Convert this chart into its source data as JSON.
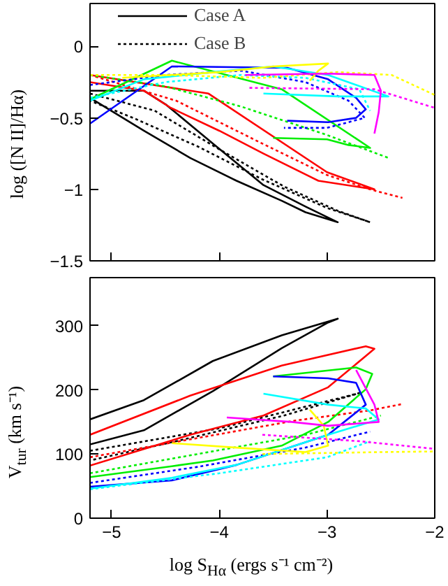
{
  "chart_data": [
    {
      "type": "line",
      "ylabel": "log ([N II]/Hα)",
      "xlim": [
        -5.2,
        -2
      ],
      "xticks": [
        -5,
        -4,
        -3,
        -2
      ],
      "ylim": [
        -1.5,
        0.3
      ],
      "yticks": [
        -1.5,
        -1,
        -0.5,
        0
      ],
      "tick_labels": "y",
      "legend": "top left",
      "series": [
        {
          "name": "Case A",
          "color": "#000000",
          "line_style": "solid",
          "x": [
            -5.2,
            -4.7,
            -4.49,
            -4.06,
            -3.59,
            -3.2,
            -2.9,
            -3.2,
            -3.42,
            -3.84,
            -4.27,
            -4.7,
            -5.2
          ],
          "values": [
            -0.31,
            -0.31,
            -0.41,
            -0.68,
            -0.97,
            -1.12,
            -1.23,
            -1.16,
            -1.08,
            -0.94,
            -0.78,
            -0.59,
            -0.36
          ]
        },
        {
          "name": "Case B",
          "color": "#000000",
          "line_style": "dotted",
          "x": [
            -5.2,
            -4.6,
            -4.0,
            -3.4,
            -2.9,
            -2.6,
            -3.0,
            -3.6,
            -4.2,
            -4.8,
            -5.2
          ],
          "values": [
            -0.33,
            -0.45,
            -0.72,
            -0.98,
            -1.15,
            -1.23,
            -1.13,
            -0.93,
            -0.7,
            -0.5,
            -0.38
          ]
        },
        {
          "color": "#ff0000",
          "line_style": "solid",
          "x": [
            -5.2,
            -4.1,
            -3.0,
            -2.56,
            -3.08,
            -3.59,
            -4.0,
            -4.45,
            -4.7,
            -5.2
          ],
          "values": [
            -0.2,
            -0.33,
            -0.88,
            -1.0,
            -0.94,
            -0.75,
            -0.59,
            -0.43,
            -0.31,
            -0.25
          ]
        },
        {
          "color": "#ff0000",
          "line_style": "dotted",
          "x": [
            -5.2,
            -4.4,
            -3.6,
            -3.0,
            -2.6,
            -2.3
          ],
          "values": [
            -0.2,
            -0.38,
            -0.68,
            -0.9,
            -1.0,
            -1.06
          ]
        },
        {
          "color": "#00ee00",
          "line_style": "solid",
          "x": [
            -5.2,
            -4.44,
            -3.42,
            -2.6,
            -2.8,
            -3.0,
            -3.5
          ],
          "values": [
            -0.37,
            -0.1,
            -0.3,
            -0.71,
            -0.69,
            -0.65,
            -0.64
          ]
        },
        {
          "color": "#00ee00",
          "line_style": "dotted",
          "x": [
            -5.2,
            -4.5,
            -3.8,
            -3.0,
            -2.43
          ],
          "values": [
            -0.2,
            -0.28,
            -0.42,
            -0.62,
            -0.78
          ]
        },
        {
          "color": "#0000ff",
          "line_style": "solid",
          "x": [
            -5.2,
            -4.44,
            -3.37,
            -2.99,
            -2.73,
            -2.64,
            -2.73,
            -2.99,
            -3.37
          ],
          "values": [
            -0.54,
            -0.14,
            -0.15,
            -0.23,
            -0.36,
            -0.44,
            -0.5,
            -0.53,
            -0.52
          ]
        },
        {
          "color": "#0000ff",
          "line_style": "dotted",
          "x": [
            -5.2,
            -4.5,
            -3.8,
            -3.2,
            -2.8,
            -2.65,
            -3.0,
            -3.4
          ],
          "values": [
            -0.27,
            -0.2,
            -0.17,
            -0.25,
            -0.38,
            -0.5,
            -0.57,
            -0.57
          ]
        },
        {
          "color": "#00ffff",
          "line_style": "solid",
          "x": [
            -5.2,
            -4.7,
            -4.06,
            -3.5,
            -2.99,
            -2.43,
            -2.9,
            -3.59
          ],
          "values": [
            -0.38,
            -0.23,
            -0.18,
            -0.14,
            -0.2,
            -0.35,
            -0.35,
            -0.33
          ]
        },
        {
          "color": "#00ffff",
          "line_style": "dotted",
          "x": [
            -5.2,
            -4.5,
            -3.8,
            -3.2,
            -2.7,
            -2.6
          ],
          "values": [
            -0.36,
            -0.25,
            -0.2,
            -0.22,
            -0.3,
            -0.45
          ]
        },
        {
          "color": "#ffff00",
          "line_style": "solid",
          "x": [
            -4.9,
            -4.0,
            -3.5,
            -2.99,
            -3.08,
            -3.16
          ],
          "values": [
            -0.22,
            -0.18,
            -0.14,
            -0.12,
            -0.17,
            -0.24
          ]
        },
        {
          "color": "#ffff00",
          "line_style": "dotted",
          "x": [
            -5.2,
            -4.5,
            -3.6,
            -2.9,
            -2.4,
            -2.0
          ],
          "values": [
            -0.2,
            -0.2,
            -0.22,
            -0.18,
            -0.2,
            -0.34
          ]
        },
        {
          "color": "#ff00ff",
          "line_style": "solid",
          "x": [
            -3.76,
            -2.99,
            -2.56,
            -2.5,
            -2.52,
            -2.56
          ],
          "values": [
            -0.2,
            -0.19,
            -0.2,
            -0.31,
            -0.46,
            -0.61
          ]
        },
        {
          "color": "#ff00ff",
          "line_style": "dotted",
          "x": [
            -3.72,
            -2.56,
            -2.0
          ],
          "values": [
            -0.29,
            -0.3,
            -0.43
          ]
        }
      ]
    },
    {
      "type": "line",
      "xlabel": "log S$_{Hα}$ (ergs s⁻¹ cm⁻²)",
      "ylabel": "V$_{tur}$ (km s⁻¹)",
      "xlim": [
        -5.2,
        -2
      ],
      "xticks": [
        -5,
        -4,
        -3,
        -2
      ],
      "ylim": [
        0,
        375
      ],
      "yticks": [
        0,
        100,
        200,
        300
      ],
      "series": [
        {
          "color": "#000000",
          "line_style": "solid",
          "x": [
            -5.2,
            -4.7,
            -4.06,
            -3.42,
            -2.9,
            -2.99,
            -3.42,
            -4.06,
            -4.7,
            -5.2
          ],
          "values": [
            154,
            184,
            245,
            285,
            311,
            305,
            265,
            198,
            137,
            115
          ]
        },
        {
          "color": "#000000",
          "line_style": "dotted",
          "x": [
            -5.2,
            -4.0,
            -2.7,
            -3.4,
            -4.4,
            -5.2
          ],
          "values": [
            105,
            140,
            195,
            160,
            120,
            90
          ]
        },
        {
          "color": "#ff0000",
          "line_style": "solid",
          "x": [
            -5.2,
            -4.27,
            -3.42,
            -2.64,
            -2.56,
            -2.99,
            -3.59,
            -4.27,
            -5.2
          ],
          "values": [
            130,
            191,
            238,
            268,
            264,
            204,
            160,
            130,
            82
          ]
        },
        {
          "color": "#ff0000",
          "line_style": "dotted",
          "x": [
            -5.2,
            -4.2,
            -3.3,
            -2.6,
            -2.3
          ],
          "values": [
            95,
            125,
            152,
            168,
            178
          ]
        },
        {
          "color": "#00ee00",
          "line_style": "solid",
          "x": [
            -5.2,
            -4.44,
            -4.06,
            -3.42,
            -2.99,
            -2.64,
            -2.58,
            -2.73,
            -3.5
          ],
          "values": [
            64,
            81,
            90,
            113,
            150,
            201,
            225,
            235,
            221
          ]
        },
        {
          "color": "#00ee00",
          "line_style": "dotted",
          "x": [
            -5.2,
            -4.2,
            -3.2,
            -2.5
          ],
          "values": [
            70,
            100,
            130,
            160
          ]
        },
        {
          "color": "#0000ff",
          "line_style": "solid",
          "x": [
            -5.2,
            -4.44,
            -3.84,
            -2.99,
            -2.64,
            -2.73,
            -2.99,
            -3.5
          ],
          "values": [
            49,
            59,
            83,
            130,
            177,
            211,
            218,
            221
          ]
        },
        {
          "color": "#0000ff",
          "line_style": "dotted",
          "x": [
            -5.2,
            -4.2,
            -3.2,
            -2.6
          ],
          "values": [
            55,
            80,
            110,
            135
          ]
        },
        {
          "color": "#00ffff",
          "line_style": "solid",
          "x": [
            -5.2,
            -4.44,
            -3.84,
            -2.99,
            -2.52,
            -2.64,
            -2.99,
            -3.59
          ],
          "values": [
            46,
            63,
            83,
            130,
            154,
            171,
            177,
            194
          ]
        },
        {
          "color": "#00ffff",
          "line_style": "dotted",
          "x": [
            -5.2,
            -4.0,
            -3.0,
            -2.6
          ],
          "values": [
            45,
            70,
            95,
            120
          ]
        },
        {
          "color": "#ffff00",
          "line_style": "solid",
          "x": [
            -4.44,
            -3.84,
            -3.2,
            -2.99,
            -3.03,
            -3.16
          ],
          "values": [
            117,
            110,
            103,
            113,
            144,
            169
          ]
        },
        {
          "color": "#ffff00",
          "line_style": "dotted",
          "x": [
            -3.6,
            -2.5,
            -2.0
          ],
          "values": [
            100,
            103,
            104
          ]
        },
        {
          "color": "#ff00ff",
          "line_style": "solid",
          "x": [
            -3.93,
            -3.33,
            -2.99,
            -2.52,
            -2.56,
            -2.73
          ],
          "values": [
            157,
            150,
            144,
            150,
            177,
            231
          ]
        },
        {
          "color": "#ff00ff",
          "line_style": "dotted",
          "x": [
            -3.6,
            -2.7,
            -2.0
          ],
          "values": [
            130,
            120,
            108
          ]
        }
      ]
    }
  ]
}
